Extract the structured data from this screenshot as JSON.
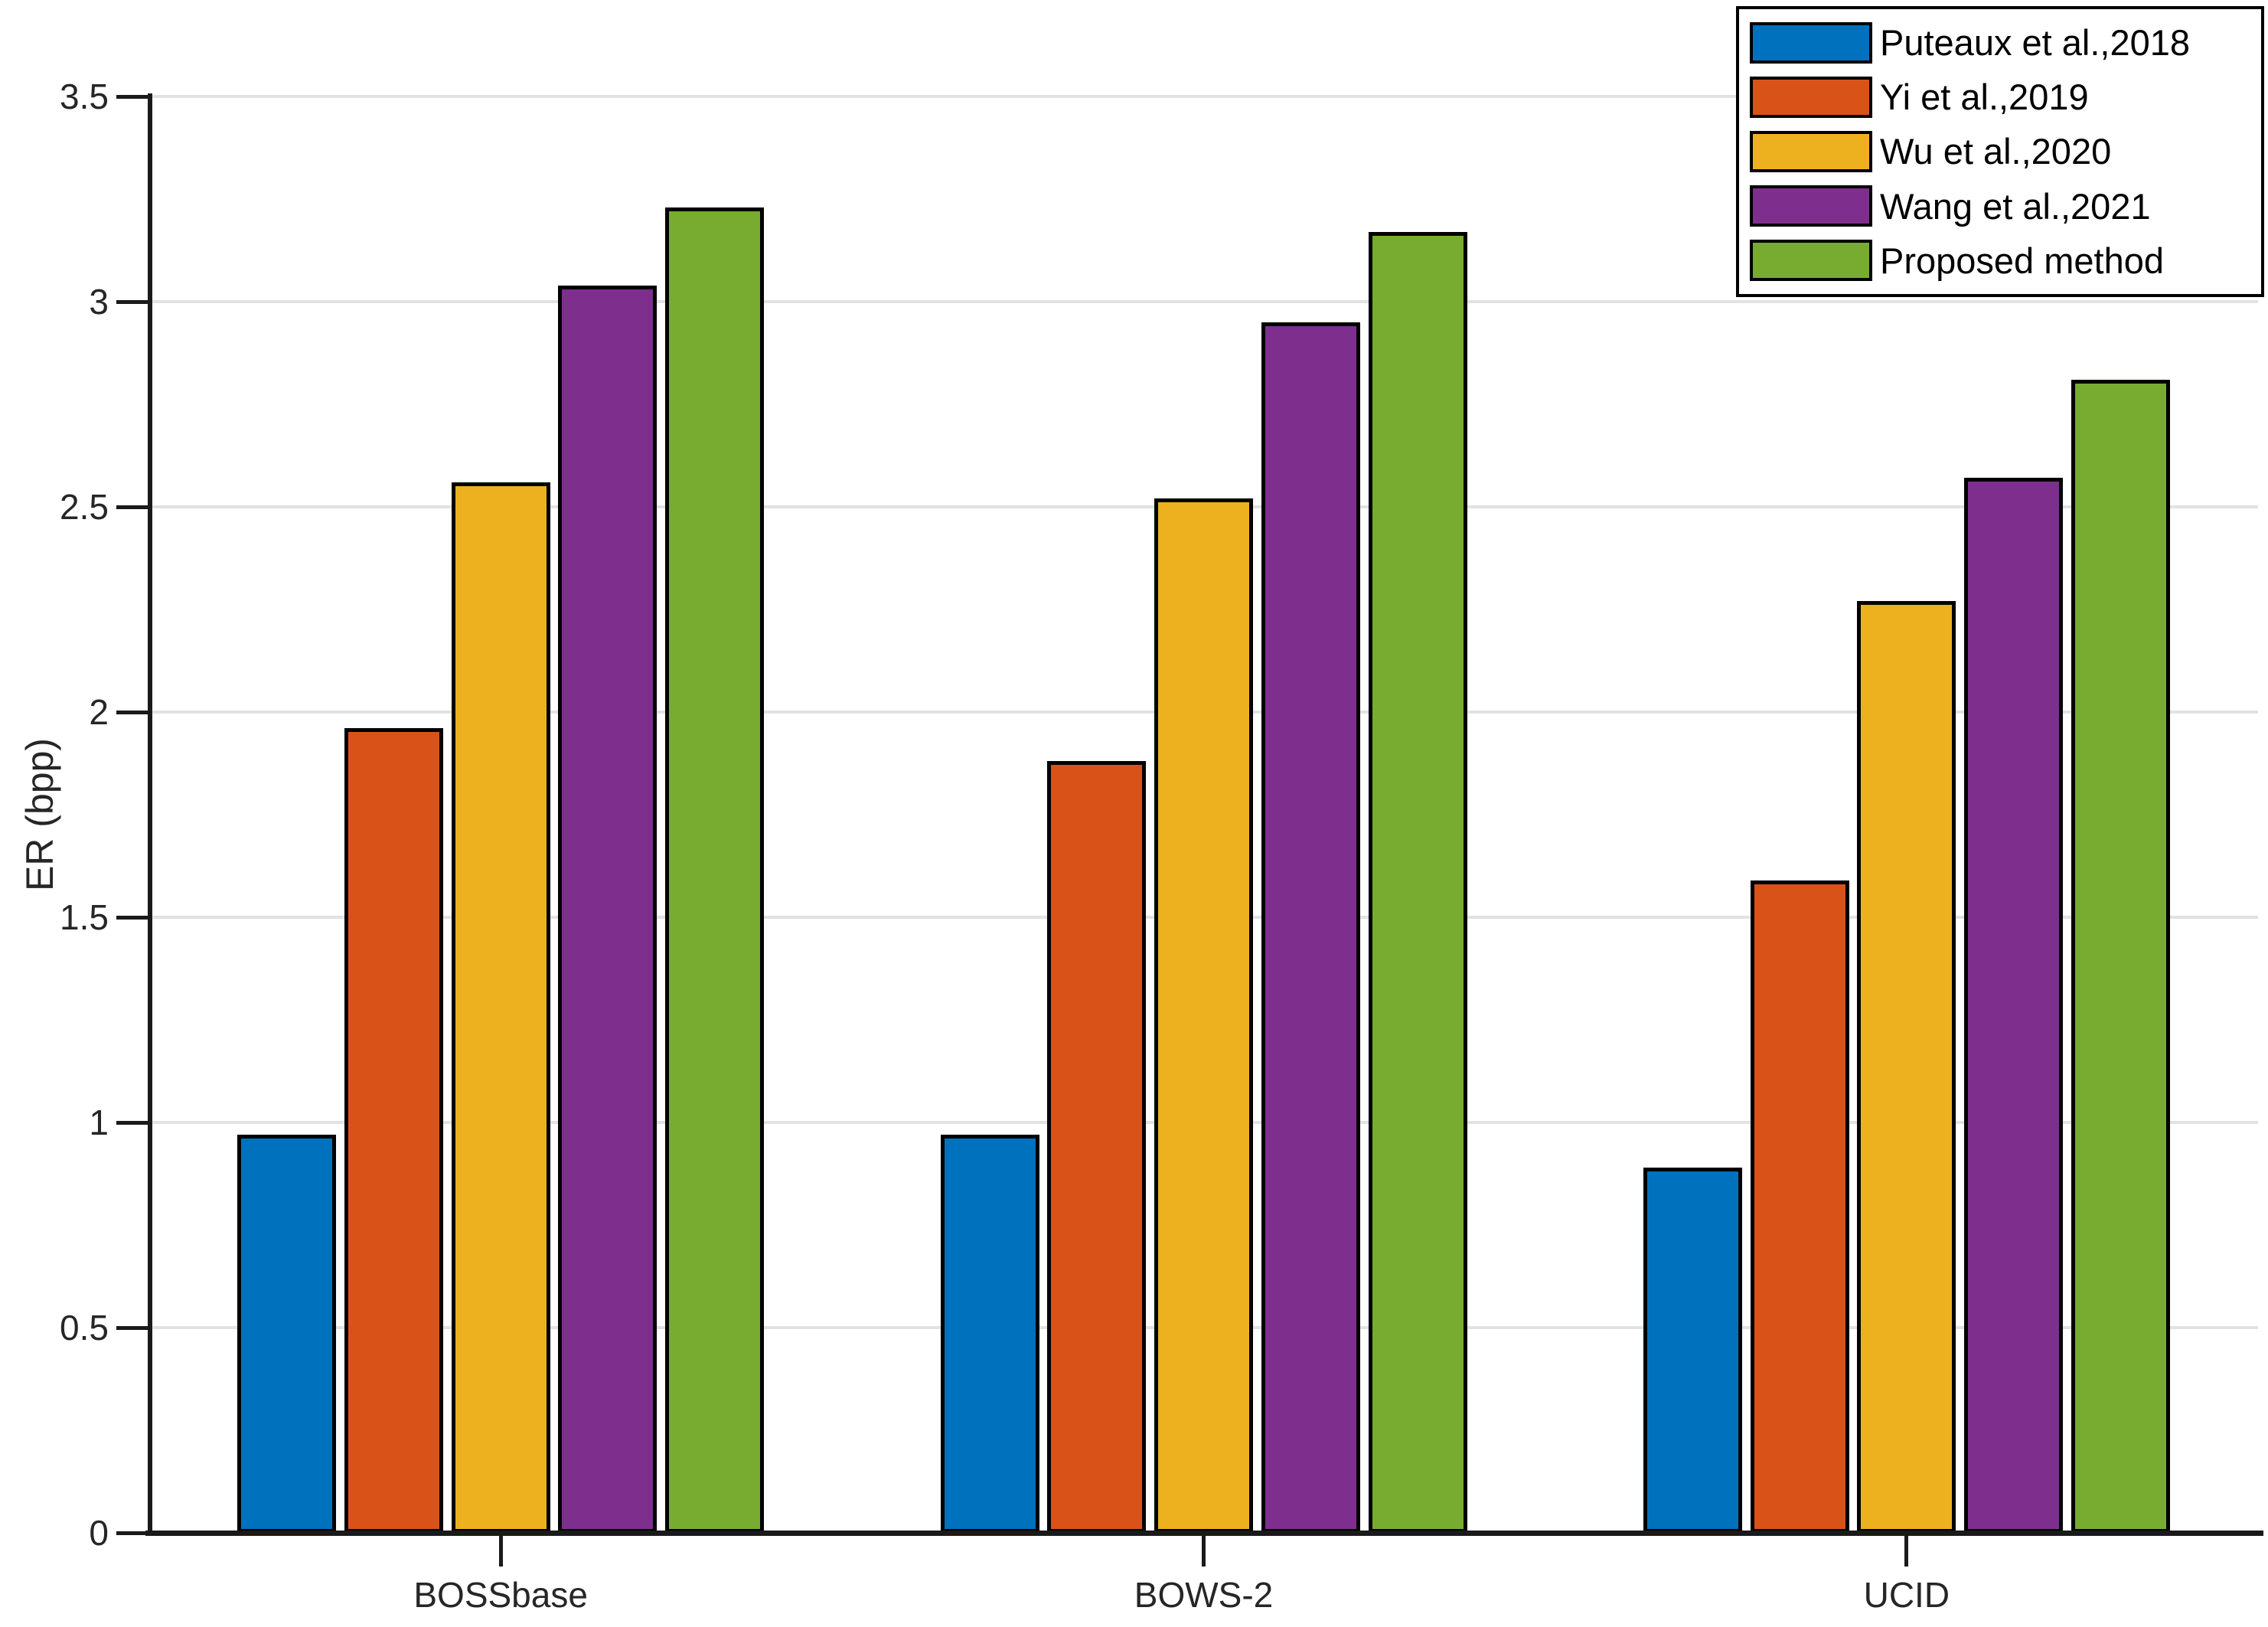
{
  "figure": {
    "background": "#ffffff"
  },
  "chart_data": {
    "type": "bar",
    "title": "",
    "xlabel": "",
    "ylabel": "ER (bpp)",
    "categories": [
      "BOSSbase",
      "BOWS-2",
      "UCID"
    ],
    "series": [
      {
        "name": "Puteaux et al.,2018",
        "color": "#0072BD",
        "values": [
          0.97,
          0.97,
          0.89
        ]
      },
      {
        "name": "Yi et al.,2019",
        "color": "#D95319",
        "values": [
          1.96,
          1.88,
          1.59
        ]
      },
      {
        "name": "Wu et al.,2020",
        "color": "#EDB120",
        "values": [
          2.56,
          2.52,
          2.27
        ]
      },
      {
        "name": "Wang et al.,2021",
        "color": "#7E2F8E",
        "values": [
          3.04,
          2.95,
          2.57
        ]
      },
      {
        "name": "Proposed method",
        "color": "#77AC30",
        "values": [
          3.23,
          3.17,
          2.81
        ]
      }
    ],
    "ylim": [
      0,
      3.5
    ],
    "yticks": [
      0,
      0.5,
      1,
      1.5,
      2,
      2.5,
      3,
      3.5
    ],
    "ytick_labels": [
      "0",
      "0.5",
      "1",
      "1.5",
      "2",
      "2.5",
      "3",
      "3.5"
    ],
    "grid": "horizontal",
    "grid_color": "#e2e2e2",
    "axis_color": "#262626",
    "bar_edge_color": "#000000",
    "legend_position": "top-right"
  }
}
